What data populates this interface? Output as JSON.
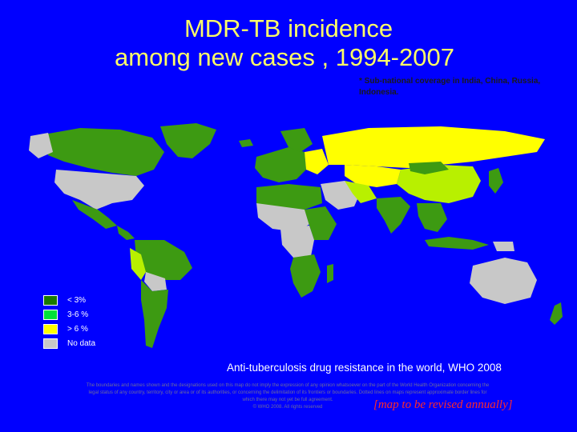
{
  "title": {
    "line1": "MDR-TB incidence",
    "line2": "among new cases , 1994-2007"
  },
  "subnote": "* Sub-national coverage in India, China, Russia, Indonesia.",
  "legend": [
    {
      "label": "< 3%",
      "color": "#1a7a00"
    },
    {
      "label": "3-6 %",
      "color": "#00e03a"
    },
    {
      "label": "> 6 %",
      "color": "#ffff00"
    },
    {
      "label": "No data",
      "color": "#c8c8c8"
    }
  ],
  "map": {
    "colors": {
      "low": "#3d9a12",
      "mid": "#b8f000",
      "high": "#ffff00",
      "nodata": "#c8c8c8",
      "sea": "#0000ff"
    }
  },
  "caption": "Anti-tuberculosis drug resistance in the world, WHO 2008",
  "disclaimer": {
    "line1": "The boundaries and names shown and the designations used on this map do not imply the expression of any opinion whatsoever on the part of the World Health Organization concerning the",
    "line2": "legal status of any country, territory, city or area or of its authorities, or concerning the delimitation of its frontiers or boundaries. Dotted lines on maps represent approximate border lines for",
    "line3": "which there may not yet be full agreement.",
    "line4": "© WHO 2008. All rights reserved"
  },
  "revised_note": "[map to be revised annually]"
}
